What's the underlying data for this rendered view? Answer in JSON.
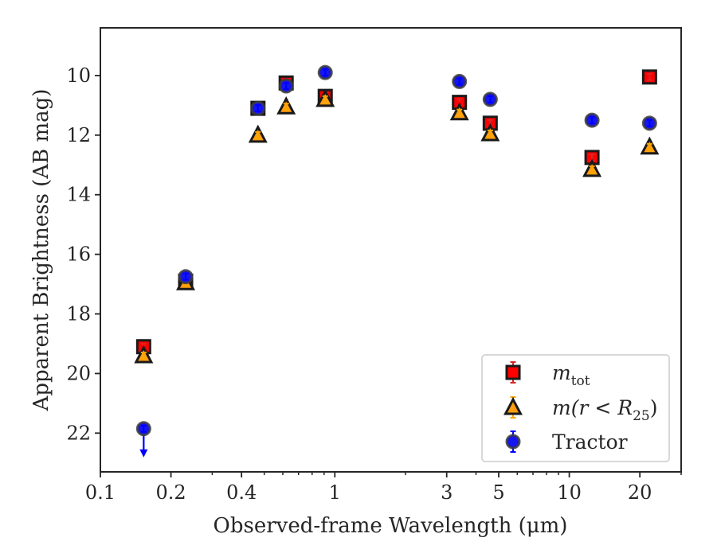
{
  "chart_data": {
    "type": "scatter",
    "xlabel": "Observed-frame Wavelength (μm)",
    "ylabel": "Apparent Brightness (AB mag)",
    "xscale": "log",
    "xlim": [
      0.1,
      30
    ],
    "ylim": [
      23.3,
      8.4
    ],
    "y_inverted": true,
    "grid": false,
    "legend_position": "lower right",
    "x_ticks": [
      {
        "value": 0.1,
        "label": "0.1"
      },
      {
        "value": 0.2,
        "label": "0.2"
      },
      {
        "value": 0.4,
        "label": "0.4"
      },
      {
        "value": 1,
        "label": "1"
      },
      {
        "value": 3,
        "label": "3"
      },
      {
        "value": 5,
        "label": "5"
      },
      {
        "value": 10,
        "label": "10"
      },
      {
        "value": 20,
        "label": "20"
      }
    ],
    "y_ticks": [
      {
        "value": 10,
        "label": "10"
      },
      {
        "value": 12,
        "label": "12"
      },
      {
        "value": 14,
        "label": "14"
      },
      {
        "value": 16,
        "label": "16"
      },
      {
        "value": 18,
        "label": "18"
      },
      {
        "value": 20,
        "label": "20"
      },
      {
        "value": 22,
        "label": "22"
      }
    ],
    "series": [
      {
        "key": "mtot",
        "marker": "square",
        "color": "#ff0000",
        "error_color": "#d62728",
        "legend_main": "m",
        "legend_sub": "tot",
        "points": [
          {
            "x": 0.153,
            "y": 19.1
          },
          {
            "x": 0.231,
            "y": 16.9
          },
          {
            "x": 0.47,
            "y": 11.1
          },
          {
            "x": 0.62,
            "y": 10.25
          },
          {
            "x": 0.91,
            "y": 10.7
          },
          {
            "x": 3.4,
            "y": 10.9
          },
          {
            "x": 4.6,
            "y": 11.6
          },
          {
            "x": 12.5,
            "y": 12.75
          },
          {
            "x": 22.0,
            "y": 10.05
          }
        ]
      },
      {
        "key": "mr25",
        "marker": "triangle",
        "color": "#ff9f0f",
        "error_color": "#ffa500",
        "legend_main": "m(r < R",
        "legend_sub": "25",
        "legend_tail": ")",
        "points": [
          {
            "x": 0.153,
            "y": 19.4
          },
          {
            "x": 0.231,
            "y": 16.95
          },
          {
            "x": 0.47,
            "y": 12.0
          },
          {
            "x": 0.62,
            "y": 11.05
          },
          {
            "x": 0.91,
            "y": 10.8
          },
          {
            "x": 3.4,
            "y": 11.25
          },
          {
            "x": 4.6,
            "y": 11.95
          },
          {
            "x": 12.5,
            "y": 13.15
          },
          {
            "x": 22.0,
            "y": 12.4
          }
        ]
      },
      {
        "key": "tractor",
        "marker": "circle",
        "color": "#1515f0",
        "error_color": "#0000ff",
        "name": "Tractor",
        "points": [
          {
            "x": 0.153,
            "y": 21.85,
            "upper_limit": true
          },
          {
            "x": 0.231,
            "y": 16.75
          },
          {
            "x": 0.47,
            "y": 11.1
          },
          {
            "x": 0.62,
            "y": 10.35
          },
          {
            "x": 0.91,
            "y": 9.9
          },
          {
            "x": 3.4,
            "y": 10.2
          },
          {
            "x": 4.6,
            "y": 10.8
          },
          {
            "x": 12.5,
            "y": 11.5
          },
          {
            "x": 22.0,
            "y": 11.6
          }
        ]
      }
    ]
  }
}
